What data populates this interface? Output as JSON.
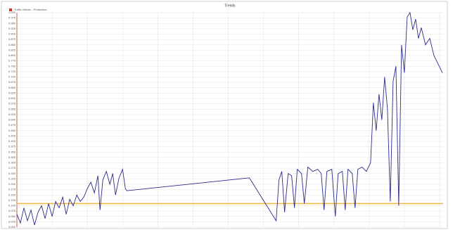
{
  "chart_data": {
    "type": "line",
    "title": "Trends",
    "x": [
      0,
      5,
      10,
      15,
      20,
      25,
      30,
      35,
      40,
      45,
      50,
      55,
      60,
      65,
      70,
      75,
      80,
      85,
      90,
      95,
      100,
      105,
      110,
      115,
      118,
      122,
      127,
      132,
      136,
      140,
      145,
      150,
      154,
      156,
      330,
      368,
      372,
      376,
      380,
      385,
      390,
      394,
      398,
      404,
      408,
      413,
      420,
      427,
      432,
      436,
      440,
      447,
      452,
      456,
      462,
      466,
      470,
      476,
      480,
      484,
      490,
      496,
      502,
      506,
      510,
      514,
      518,
      522,
      526,
      530,
      534,
      538,
      542,
      546,
      550,
      554,
      558,
      562,
      566,
      570,
      574,
      580,
      586,
      592,
      598,
      604
    ],
    "series": [
      {
        "name": "Traffic Values - Production",
        "color": "#2b2b8c",
        "values": [
          0.06,
          0.02,
          0.09,
          0.03,
          0.08,
          0.01,
          0.07,
          0.1,
          0.04,
          0.11,
          0.05,
          0.12,
          0.09,
          0.14,
          0.06,
          0.13,
          0.1,
          0.15,
          0.12,
          0.14,
          0.18,
          0.21,
          0.16,
          0.24,
          0.08,
          0.22,
          0.26,
          0.2,
          0.25,
          0.15,
          0.23,
          0.27,
          0.18,
          0.17,
          0.23,
          0.03,
          0.22,
          0.26,
          0.07,
          0.25,
          0.24,
          0.09,
          0.27,
          0.25,
          0.11,
          0.28,
          0.26,
          0.27,
          0.25,
          0.08,
          0.26,
          0.27,
          0.05,
          0.25,
          0.26,
          0.08,
          0.27,
          0.25,
          0.09,
          0.27,
          0.28,
          0.26,
          0.3,
          0.58,
          0.45,
          0.62,
          0.5,
          0.7,
          0.55,
          0.12,
          0.68,
          0.75,
          0.1,
          0.85,
          0.72,
          0.98,
          1.0,
          0.92,
          0.97,
          0.88,
          0.93,
          0.85,
          0.88,
          0.8,
          0.76,
          0.72
        ]
      }
    ],
    "threshold": {
      "value": 0.11,
      "color": "#f2b94a"
    },
    "legend_color": "#d9302c",
    "xlim": [
      0,
      605
    ],
    "xticks": [
      0,
      50,
      100,
      150,
      200,
      250,
      300,
      350,
      400,
      450,
      500,
      550,
      600
    ],
    "ylim": [
      0,
      1.0
    ],
    "yticks": [
      {
        "value": 0,
        "label": "0.000"
      },
      {
        "value": 0.025,
        "label": "0.025"
      },
      {
        "value": 0.05,
        "label": "0.050"
      },
      {
        "value": 0.075,
        "label": "0.075"
      },
      {
        "value": 0.1,
        "label": "0.100"
      },
      {
        "value": 0.125,
        "label": "0.125"
      },
      {
        "value": 0.15,
        "label": "0.150"
      },
      {
        "value": 0.175,
        "label": "0.175"
      },
      {
        "value": 0.2,
        "label": "0.200"
      },
      {
        "value": 0.225,
        "label": "0.225"
      },
      {
        "value": 0.25,
        "label": "0.250"
      },
      {
        "value": 0.275,
        "label": "0.275"
      },
      {
        "value": 0.3,
        "label": "0.300"
      },
      {
        "value": 0.325,
        "label": "0.325"
      },
      {
        "value": 0.35,
        "label": "0.350"
      },
      {
        "value": 0.375,
        "label": "0.375"
      },
      {
        "value": 0.4,
        "label": "0.400"
      },
      {
        "value": 0.425,
        "label": "0.425"
      },
      {
        "value": 0.45,
        "label": "0.450"
      },
      {
        "value": 0.475,
        "label": "0.475"
      },
      {
        "value": 0.5,
        "label": "0.500"
      },
      {
        "value": 0.525,
        "label": "0.525"
      },
      {
        "value": 0.55,
        "label": "0.550"
      },
      {
        "value": 0.575,
        "label": "0.575"
      },
      {
        "value": 0.6,
        "label": "0.600"
      },
      {
        "value": 0.625,
        "label": "0.625"
      },
      {
        "value": 0.65,
        "label": "0.650"
      },
      {
        "value": 0.675,
        "label": "0.675"
      },
      {
        "value": 0.7,
        "label": "0.700"
      },
      {
        "value": 0.725,
        "label": "0.725"
      },
      {
        "value": 0.75,
        "label": "0.750"
      },
      {
        "value": 0.775,
        "label": "0.775"
      },
      {
        "value": 0.8,
        "label": "0.800"
      },
      {
        "value": 0.825,
        "label": "0.825"
      },
      {
        "value": 0.85,
        "label": "0.850"
      },
      {
        "value": 0.875,
        "label": "0.875"
      },
      {
        "value": 0.9,
        "label": "0.900"
      },
      {
        "value": 0.925,
        "label": "0.925"
      },
      {
        "value": 0.95,
        "label": "0.950"
      },
      {
        "value": 0.975,
        "label": "0.975"
      },
      {
        "value": 1.0,
        "label": "1.000"
      }
    ],
    "grid": true
  }
}
